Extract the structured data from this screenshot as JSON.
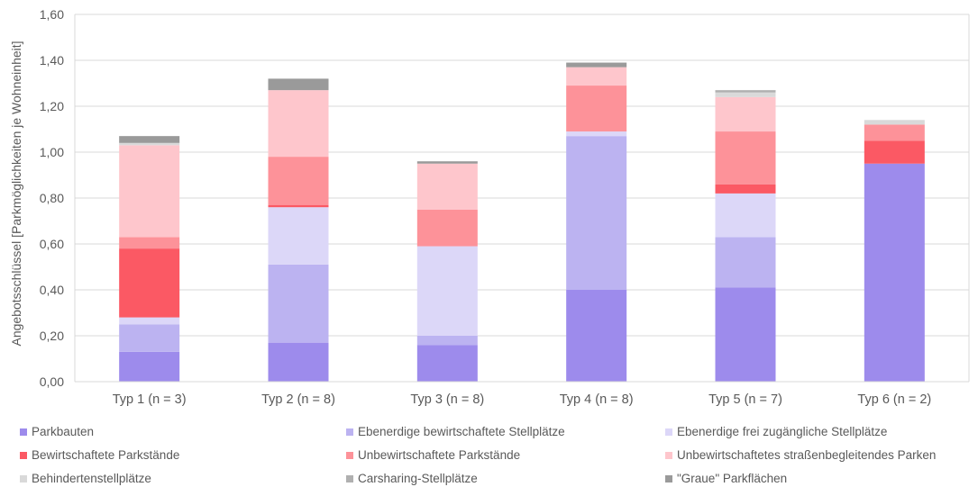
{
  "chart_data": {
    "type": "bar",
    "stacked": true,
    "ylabel": "Angebotsschlüssel [Parkmöglichkeiten je Wohneinheit]",
    "xlabel": "",
    "ylim": [
      0,
      1.6
    ],
    "yticks": [
      "0,00",
      "0,20",
      "0,40",
      "0,60",
      "0,80",
      "1,00",
      "1,20",
      "1,40",
      "1,60"
    ],
    "grid": true,
    "legend_position": "bottom",
    "categories": [
      "Typ 1 (n = 3)",
      "Typ 2 (n = 8)",
      "Typ 3 (n = 8)",
      "Typ 4 (n = 8)",
      "Typ 5 (n = 7)",
      "Typ 6 (n = 2)"
    ],
    "series": [
      {
        "name": "Parkbauten",
        "color": "#9d8bec",
        "values": [
          0.13,
          0.17,
          0.16,
          0.4,
          0.41,
          0.95
        ]
      },
      {
        "name": "Ebenerdige bewirtschaftete Stellplätze",
        "color": "#bcb3f1",
        "values": [
          0.12,
          0.34,
          0.04,
          0.67,
          0.22,
          0.0
        ]
      },
      {
        "name": "Ebenerdige frei zugängliche Stellplätze",
        "color": "#dcd7f8",
        "values": [
          0.03,
          0.25,
          0.39,
          0.02,
          0.19,
          0.0
        ]
      },
      {
        "name": "Bewirtschaftete Parkstände",
        "color": "#fb5964",
        "values": [
          0.3,
          0.01,
          0.0,
          0.0,
          0.04,
          0.1
        ]
      },
      {
        "name": "Unbewirtschaftete Parkstände",
        "color": "#fd9299",
        "values": [
          0.05,
          0.21,
          0.16,
          0.2,
          0.23,
          0.07
        ]
      },
      {
        "name": "Unbewirtschaftetes straßenbegleitendes Parken",
        "color": "#fec6cc",
        "values": [
          0.4,
          0.29,
          0.2,
          0.08,
          0.15,
          0.0
        ]
      },
      {
        "name": "Behindertenstellplätze",
        "color": "#d9d9d9",
        "values": [
          0.01,
          0.0,
          0.0,
          0.0,
          0.02,
          0.02
        ]
      },
      {
        "name": "Carsharing-Stellplätze",
        "color": "#b0b0b0",
        "values": [
          0.0,
          0.0,
          0.0,
          0.0,
          0.01,
          0.0
        ]
      },
      {
        "name": "\"Graue\" Parkflächen",
        "color": "#9a9a9a",
        "values": [
          0.03,
          0.05,
          0.01,
          0.02,
          0.0,
          0.0
        ]
      }
    ]
  }
}
